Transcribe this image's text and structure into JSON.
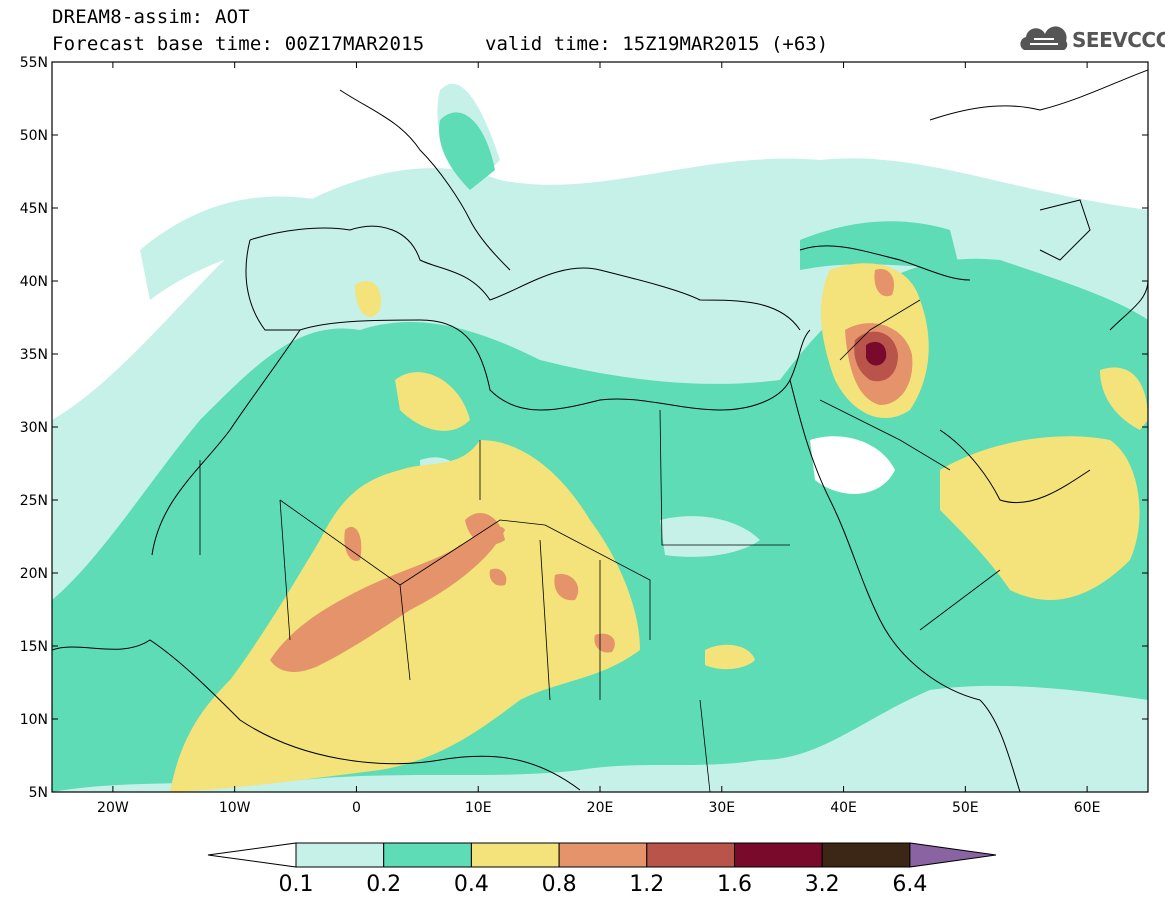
{
  "title": {
    "line1": "DREAM8-assim: AOT",
    "line2": "Forecast base time: 00Z17MAR2015",
    "valid": "valid time: 15Z19MAR2015 (+63)"
  },
  "logo": {
    "text": "SEEVCCC",
    "icon": "cloud-logo-icon"
  },
  "map": {
    "lat_labels": [
      "55N",
      "50N",
      "45N",
      "40N",
      "35N",
      "30N",
      "25N",
      "20N",
      "15N",
      "10N",
      "5N"
    ],
    "lat_values": [
      55,
      50,
      45,
      40,
      35,
      30,
      25,
      20,
      15,
      10,
      5
    ],
    "lon_labels": [
      "20W",
      "10W",
      "0",
      "10E",
      "20E",
      "30E",
      "40E",
      "50E",
      "60E"
    ],
    "lon_values": [
      -20,
      -10,
      0,
      10,
      20,
      30,
      40,
      50,
      60
    ],
    "extent": {
      "lon_min": -25,
      "lon_max": 65,
      "lat_min": 5,
      "lat_max": 55
    }
  },
  "colorbar": {
    "labels": [
      "0.1",
      "0.2",
      "0.4",
      "0.8",
      "1.2",
      "1.6",
      "3.2",
      "6.4"
    ],
    "colors": [
      "#ffffff",
      "#c6f1e9",
      "#5ddcb5",
      "#f3e37a",
      "#e4936a",
      "#b8544a",
      "#7a0a2c",
      "#3c2616",
      "#8a63a2"
    ]
  }
}
